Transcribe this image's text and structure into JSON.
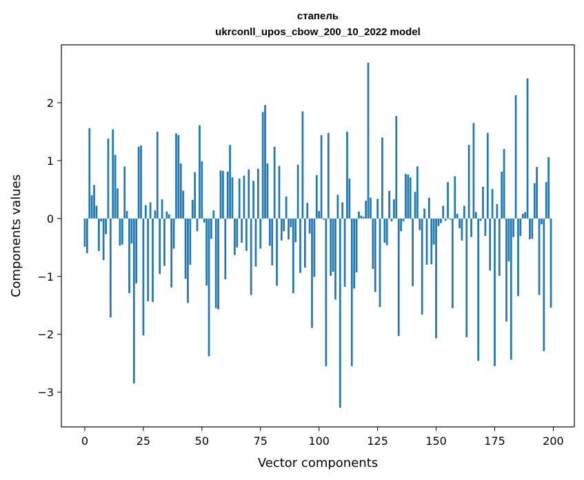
{
  "chart_data": {
    "type": "bar",
    "title_line1": "стапель",
    "title_line2": "ukrconll_upos_cbow_200_10_2022 model",
    "xlabel": "Vector components",
    "ylabel": "Components values",
    "xlim": [
      -10,
      209
    ],
    "ylim": [
      -3.6,
      3.0
    ],
    "xticks": [
      0,
      25,
      50,
      75,
      100,
      125,
      150,
      175,
      200
    ],
    "yticks": [
      -3,
      -2,
      -1,
      0,
      1,
      2
    ],
    "ytick_labels": [
      "−3",
      "−2",
      "−1",
      "0",
      "1",
      "2"
    ],
    "bar_color": "#1f77b4",
    "x": [
      0,
      1,
      2,
      3,
      4,
      5,
      6,
      7,
      8,
      9,
      10,
      11,
      12,
      13,
      14,
      15,
      16,
      17,
      18,
      19,
      20,
      21,
      22,
      23,
      24,
      25,
      26,
      27,
      28,
      29,
      30,
      31,
      32,
      33,
      34,
      35,
      36,
      37,
      38,
      39,
      40,
      41,
      42,
      43,
      44,
      45,
      46,
      47,
      48,
      49,
      50,
      51,
      52,
      53,
      54,
      55,
      56,
      57,
      58,
      59,
      60,
      61,
      62,
      63,
      64,
      65,
      66,
      67,
      68,
      69,
      70,
      71,
      72,
      73,
      74,
      75,
      76,
      77,
      78,
      79,
      80,
      81,
      82,
      83,
      84,
      85,
      86,
      87,
      88,
      89,
      90,
      91,
      92,
      93,
      94,
      95,
      96,
      97,
      98,
      99,
      100,
      101,
      102,
      103,
      104,
      105,
      106,
      107,
      108,
      109,
      110,
      111,
      112,
      113,
      114,
      115,
      116,
      117,
      118,
      119,
      120,
      121,
      122,
      123,
      124,
      125,
      126,
      127,
      128,
      129,
      130,
      131,
      132,
      133,
      134,
      135,
      136,
      137,
      138,
      139,
      140,
      141,
      142,
      143,
      144,
      145,
      146,
      147,
      148,
      149,
      150,
      151,
      152,
      153,
      154,
      155,
      156,
      157,
      158,
      159,
      160,
      161,
      162,
      163,
      164,
      165,
      166,
      167,
      168,
      169,
      170,
      171,
      172,
      173,
      174,
      175,
      176,
      177,
      178,
      179,
      180,
      181,
      182,
      183,
      184,
      185,
      186,
      187,
      188,
      189,
      190,
      191,
      192,
      193,
      194,
      195,
      196,
      197,
      198,
      199
    ],
    "values": [
      -0.49,
      -0.6,
      1.56,
      0.4,
      0.58,
      0.22,
      -0.56,
      -0.05,
      -0.72,
      -0.27,
      1.38,
      -1.71,
      1.54,
      1.1,
      0.52,
      -0.47,
      -0.45,
      0.9,
      0.13,
      -1.29,
      -0.43,
      -2.85,
      -1.12,
      1.24,
      1.26,
      -2.02,
      0.23,
      -1.43,
      0.28,
      -1.44,
      0.14,
      1.5,
      -0.96,
      0.33,
      -0.82,
      0.12,
      0.07,
      -1.19,
      -0.52,
      1.47,
      1.44,
      0.95,
      0.48,
      -1.04,
      -1.46,
      -0.8,
      0.32,
      0.8,
      -0.22,
      1.61,
      0.99,
      -0.07,
      -1.16,
      -2.38,
      -0.35,
      0.14,
      -1.55,
      -1.57,
      0.83,
      0.82,
      -1.05,
      0.81,
      1.27,
      0.71,
      -0.63,
      -0.5,
      0.69,
      -0.42,
      0.74,
      -0.56,
      0.85,
      -1.32,
      0.65,
      -0.83,
      0.86,
      -0.52,
      1.84,
      1.96,
      0.95,
      -0.47,
      -0.81,
      1.24,
      -1.16,
      0.91,
      -0.38,
      -0.22,
      0.38,
      -0.36,
      -0.15,
      -1.29,
      -0.41,
      0.93,
      -0.94,
      1.85,
      -0.85,
      0.27,
      -0.26,
      -1.89,
      -1.01,
      0.75,
      0.13,
      1.44,
      -0.02,
      -2.55,
      1.48,
      -0.99,
      -0.92,
      -1.4,
      0.41,
      -3.27,
      0.28,
      -1.18,
      1.5,
      0.69,
      -2.55,
      -1.21,
      -0.93,
      0.12,
      0.05,
      0.03,
      0.31,
      2.69,
      0.36,
      -0.87,
      -1.27,
      0.34,
      -1.53,
      1.4,
      -0.42,
      -0.46,
      0.48,
      -0.05,
      0.33,
      1.77,
      -2.03,
      -0.22,
      -0.05,
      0.77,
      0.76,
      0.71,
      -1.17,
      0.46,
      0.9,
      -0.2,
      -1.66,
      0.17,
      -0.8,
      0.36,
      -0.79,
      -0.45,
      -2.07,
      -0.13,
      -0.08,
      0.22,
      -0.04,
      0.63,
      -0.02,
      -1.55,
      0.73,
      0.08,
      -0.17,
      -0.38,
      0.22,
      -2.05,
      1.27,
      -0.32,
      1.65,
      0.11,
      -2.46,
      -0.04,
      0.55,
      -0.3,
      1.48,
      -0.9,
      0.51,
      -2.55,
      0.25,
      -0.99,
      0.81,
      1.2,
      -1.78,
      -0.74,
      -2.44,
      -0.32,
      2.13,
      -1.34,
      -0.3,
      0.08,
      0.11,
      2.42,
      -0.36,
      -0.35,
      0.61,
      0.89,
      -1.32,
      -0.1,
      -2.29,
      0.63,
      1.06,
      -1.54
    ]
  }
}
